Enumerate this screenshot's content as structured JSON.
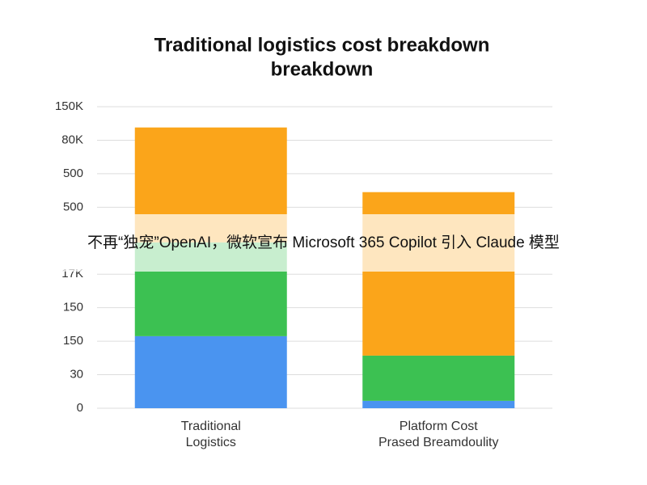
{
  "chart_data": {
    "type": "stacked-bar",
    "title": [
      "Traditional logistics cost breakdown",
      "breakdown"
    ],
    "categories": [
      [
        "Traditional",
        "Logistics"
      ],
      [
        "Platform Cost",
        "Prased Breamdoulity"
      ]
    ],
    "series": [
      {
        "color": "#4a94f0",
        "values": [
          2.15,
          0.22
        ]
      },
      {
        "color": "#3cc152",
        "values": [
          2.8,
          1.35
        ]
      },
      {
        "color": "#fba51a",
        "values": [
          3.43,
          4.88
        ]
      }
    ],
    "ylim": [
      0,
      9
    ],
    "yticks": [
      0,
      {
        "value": 1,
        "label": "30"
      },
      {
        "value": 2,
        "label": "150"
      },
      {
        "value": 3,
        "label": "150"
      },
      {
        "value": 4,
        "label": "17K"
      },
      {
        "value": 5,
        "label": null
      },
      {
        "value": 6,
        "label": "500"
      },
      {
        "value": 7,
        "label": "500"
      },
      {
        "value": 8,
        "label": "80K"
      },
      {
        "value": 9,
        "label": "150K"
      }
    ],
    "grid": true,
    "annotation": "不再“独宠”OpenAI，微软宣布 Microsoft 365 Copilot 引入 Claude 模型"
  }
}
